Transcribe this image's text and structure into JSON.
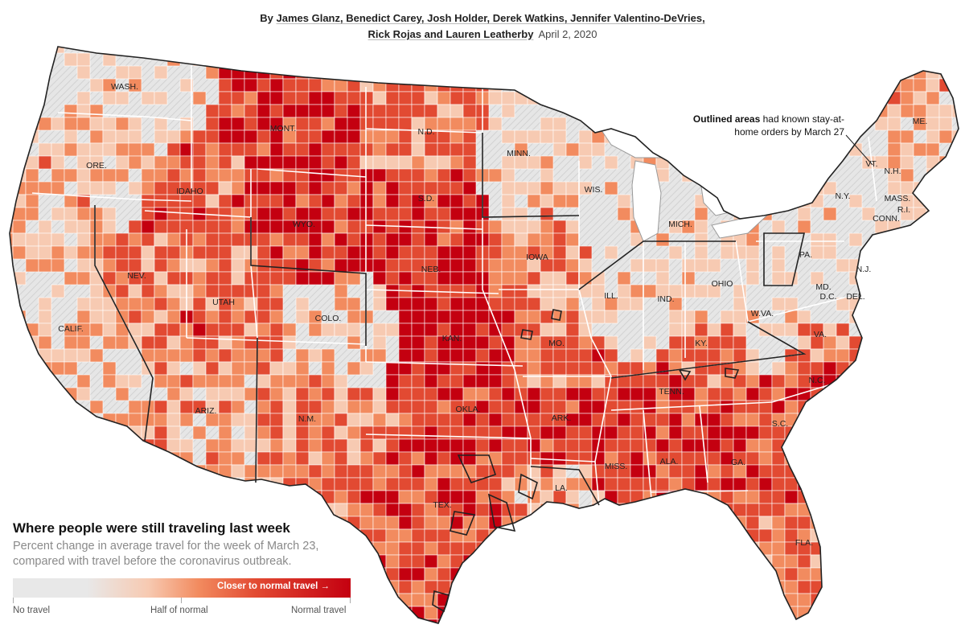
{
  "byline": {
    "prefix": "By",
    "authors_line1": "James Glanz, Benedict Carey, Josh Holder, Derek Watkins, Jennifer Valentino-DeVries,",
    "authors_line2": "Rick Rojas and Lauren Leatherby",
    "date": "April 2, 2020"
  },
  "annotation": {
    "bold": "Outlined areas",
    "rest_line1": " had known stay-at-",
    "rest_line2": "home orders by March 27"
  },
  "legend": {
    "title": "Where people were still traveling last week",
    "subtitle": "Percent change in average travel for the week of March 23, compared with travel before the coronavirus outbreak.",
    "closer_label": "Closer to normal travel →",
    "label_left": "No travel",
    "label_mid": "Half of normal",
    "label_right": "Normal travel"
  },
  "colors": {
    "no_data": "#e8e8e8",
    "light": "#f7cab2",
    "mid": "#f28b5f",
    "strong": "#e24a32",
    "deep": "#c40010",
    "border": "#ffffff",
    "outline": "#222222"
  },
  "states": [
    {
      "abbr": "WASH.",
      "level": 0.08,
      "outlined": true
    },
    {
      "abbr": "ORE.",
      "level": 0.25,
      "outlined": true
    },
    {
      "abbr": "CALIF.",
      "level": 0.18,
      "outlined": true
    },
    {
      "abbr": "IDAHO",
      "level": 0.55,
      "outlined": true
    },
    {
      "abbr": "NEV.",
      "level": 0.45,
      "outlined": true
    },
    {
      "abbr": "UTAH",
      "level": 0.5,
      "outlined": false
    },
    {
      "abbr": "ARIZ.",
      "level": 0.3,
      "outlined": true
    },
    {
      "abbr": "MONT.",
      "level": 0.75,
      "outlined": true
    },
    {
      "abbr": "WYO.",
      "level": 0.7,
      "outlined": false
    },
    {
      "abbr": "COLO.",
      "level": 0.15,
      "outlined": true
    },
    {
      "abbr": "N.M.",
      "level": 0.45,
      "outlined": true
    },
    {
      "abbr": "N.D.",
      "level": 0.45,
      "outlined": false
    },
    {
      "abbr": "S.D.",
      "level": 0.75,
      "outlined": false
    },
    {
      "abbr": "NEB.",
      "level": 0.8,
      "outlined": false
    },
    {
      "abbr": "KAN.",
      "level": 0.85,
      "outlined": false
    },
    {
      "abbr": "OKLA.",
      "level": 0.7,
      "outlined": false
    },
    {
      "abbr": "TEX.",
      "level": 0.6,
      "outlined": false
    },
    {
      "abbr": "MINN.",
      "level": 0.12,
      "outlined": true
    },
    {
      "abbr": "IOWA",
      "level": 0.4,
      "outlined": false
    },
    {
      "abbr": "MO.",
      "level": 0.5,
      "outlined": false
    },
    {
      "abbr": "ARK.",
      "level": 0.7,
      "outlined": false
    },
    {
      "abbr": "LA.",
      "level": 0.3,
      "outlined": true
    },
    {
      "abbr": "WIS.",
      "level": 0.1,
      "outlined": true
    },
    {
      "abbr": "ILL.",
      "level": 0.06,
      "outlined": true
    },
    {
      "abbr": "MICH.",
      "level": 0.05,
      "outlined": true
    },
    {
      "abbr": "IND.",
      "level": 0.08,
      "outlined": true
    },
    {
      "abbr": "OHIO",
      "level": 0.1,
      "outlined": true
    },
    {
      "abbr": "KY.",
      "level": 0.45,
      "outlined": false
    },
    {
      "abbr": "TENN.",
      "level": 0.65,
      "outlined": false
    },
    {
      "abbr": "MISS.",
      "level": 0.7,
      "outlined": false
    },
    {
      "abbr": "ALA.",
      "level": 0.7,
      "outlined": false
    },
    {
      "abbr": "GA.",
      "level": 0.65,
      "outlined": false
    },
    {
      "abbr": "FLA.",
      "level": 0.45,
      "outlined": false
    },
    {
      "abbr": "S.C.",
      "level": 0.6,
      "outlined": false
    },
    {
      "abbr": "N.C.",
      "level": 0.6,
      "outlined": false
    },
    {
      "abbr": "VA.",
      "level": 0.45,
      "outlined": true
    },
    {
      "abbr": "W.VA.",
      "level": 0.15,
      "outlined": true
    },
    {
      "abbr": "PA.",
      "level": 0.06,
      "outlined": true
    },
    {
      "abbr": "N.Y.",
      "level": 0.05,
      "outlined": true
    },
    {
      "abbr": "VT.",
      "level": 0.08,
      "outlined": true
    },
    {
      "abbr": "N.H.",
      "level": 0.2,
      "outlined": true
    },
    {
      "abbr": "ME.",
      "level": 0.3,
      "outlined": false
    },
    {
      "abbr": "MASS.",
      "level": 0.05,
      "outlined": true
    },
    {
      "abbr": "R.I.",
      "level": 0.05,
      "outlined": true
    },
    {
      "abbr": "CONN.",
      "level": 0.05,
      "outlined": true
    },
    {
      "abbr": "N.J.",
      "level": 0.05,
      "outlined": true
    },
    {
      "abbr": "DEL.",
      "level": 0.05,
      "outlined": true
    },
    {
      "abbr": "MD.",
      "level": 0.1,
      "outlined": true
    },
    {
      "abbr": "D.C.",
      "level": 0.05,
      "outlined": true
    }
  ]
}
